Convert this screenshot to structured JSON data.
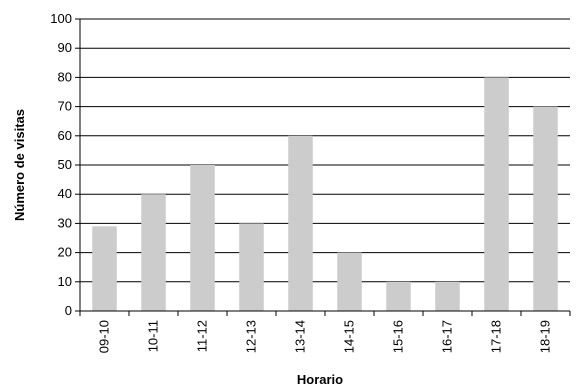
{
  "chart_data": {
    "type": "bar",
    "title": "",
    "xlabel": "Horario",
    "ylabel": "Número de visitas",
    "categories": [
      "09-10",
      "10-11",
      "11-12",
      "12-13",
      "13-14",
      "14-15",
      "15-16",
      "16-17",
      "17-18",
      "18-19"
    ],
    "values": [
      29,
      40,
      50,
      30,
      60,
      20,
      10,
      10,
      80,
      70
    ],
    "ylim": [
      0,
      100
    ],
    "yticks": [
      0,
      10,
      20,
      30,
      40,
      50,
      60,
      70,
      80,
      90,
      100
    ],
    "grid": "horizontal",
    "legend": "none",
    "colors": {
      "bar": "#cccccc",
      "grid": "#000000",
      "axis": "#000000"
    }
  }
}
